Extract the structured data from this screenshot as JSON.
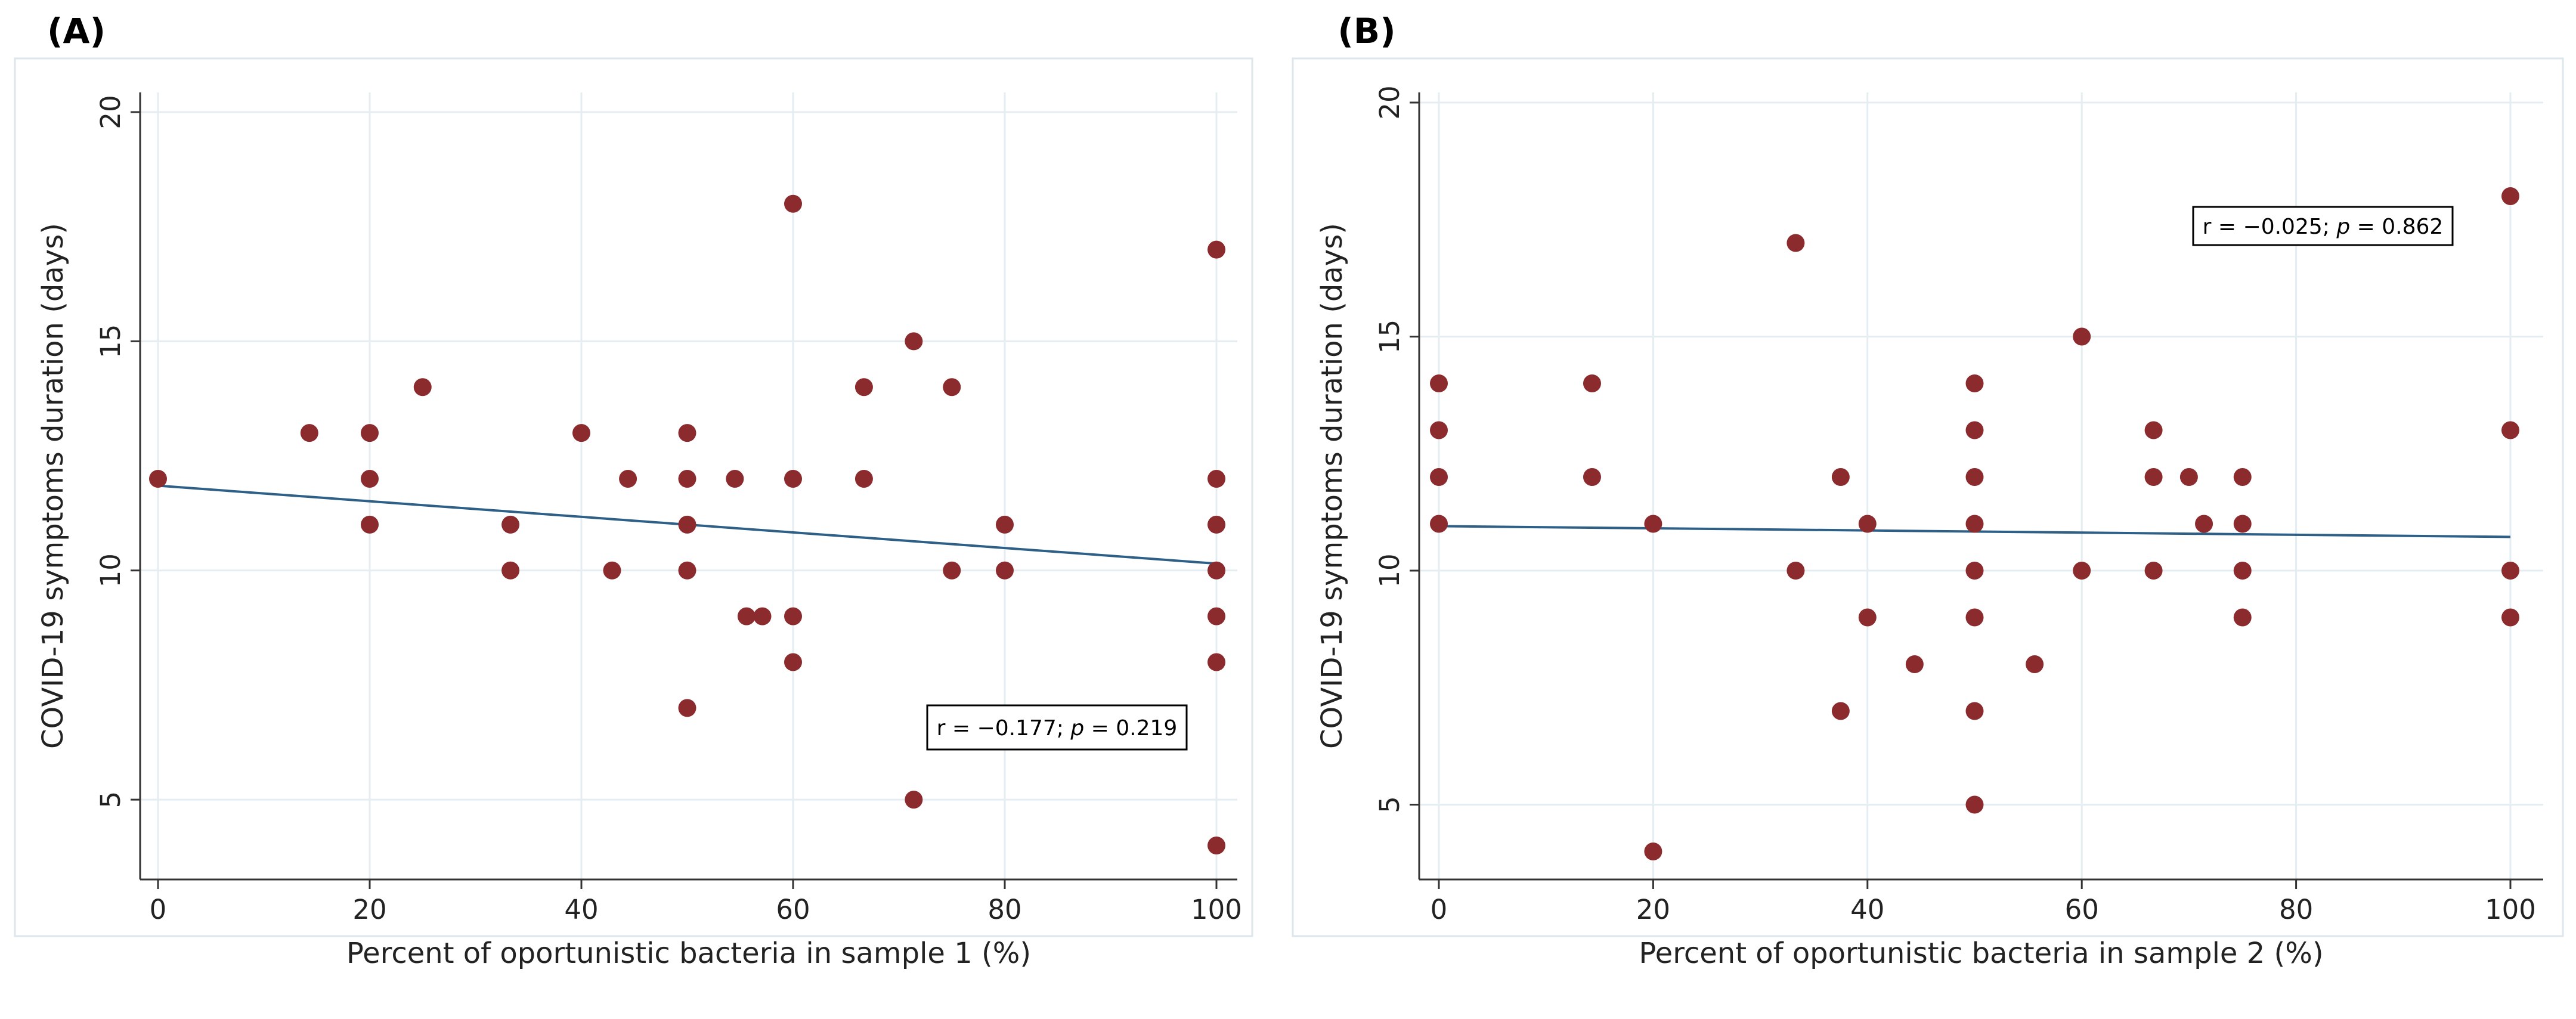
{
  "panel_labels": [
    "(A)",
    "(B)"
  ],
  "chart_data": [
    {
      "type": "scatter",
      "panel": "(A)",
      "xlabel": "Percent of oportunistic bacteria in sample 1 (%)",
      "ylabel": "COVID-19 symptoms duration (days)",
      "xlim": [
        0,
        100
      ],
      "ylim": [
        4,
        20
      ],
      "xticks": [
        0,
        20,
        40,
        60,
        80,
        100
      ],
      "yticks": [
        5,
        10,
        15,
        20
      ],
      "grid": true,
      "annotation": {
        "prefix": "r = −0.177; ",
        "p_symbol": "p",
        "suffix": " = 0.219"
      },
      "fit_line": {
        "x": [
          0,
          100
        ],
        "y": [
          11.85,
          10.15
        ]
      },
      "points": [
        [
          0,
          12
        ],
        [
          14.3,
          13
        ],
        [
          20,
          13
        ],
        [
          20,
          12
        ],
        [
          20,
          11
        ],
        [
          25,
          14
        ],
        [
          33.3,
          11
        ],
        [
          33.3,
          10
        ],
        [
          40,
          13
        ],
        [
          42.9,
          10
        ],
        [
          44.4,
          12
        ],
        [
          50,
          13
        ],
        [
          50,
          12
        ],
        [
          50,
          11
        ],
        [
          50,
          10
        ],
        [
          50,
          7
        ],
        [
          54.5,
          12
        ],
        [
          55.6,
          9
        ],
        [
          57.1,
          9
        ],
        [
          60,
          18
        ],
        [
          60,
          12
        ],
        [
          60,
          9
        ],
        [
          60,
          8
        ],
        [
          66.7,
          14
        ],
        [
          66.7,
          12
        ],
        [
          71.4,
          15
        ],
        [
          71.4,
          5
        ],
        [
          75,
          14
        ],
        [
          75,
          10
        ],
        [
          80,
          11
        ],
        [
          80,
          10
        ],
        [
          100,
          17
        ],
        [
          100,
          12
        ],
        [
          100,
          11
        ],
        [
          100,
          10
        ],
        [
          100,
          9
        ],
        [
          100,
          8
        ],
        [
          100,
          4
        ]
      ]
    },
    {
      "type": "scatter",
      "panel": "(B)",
      "xlabel": "Percent of oportunistic bacteria in sample 2 (%)",
      "ylabel": "COVID-19 symptoms duration (days)",
      "xlim": [
        0,
        100
      ],
      "ylim": [
        4,
        20
      ],
      "xticks": [
        0,
        20,
        40,
        60,
        80,
        100
      ],
      "yticks": [
        5,
        10,
        15,
        20
      ],
      "grid": true,
      "annotation": {
        "prefix": "r = −0.025; ",
        "p_symbol": "p",
        "suffix": " = 0.862"
      },
      "fit_line": {
        "x": [
          0,
          100
        ],
        "y": [
          10.95,
          10.72
        ]
      },
      "points": [
        [
          0,
          14
        ],
        [
          0,
          13
        ],
        [
          0,
          12
        ],
        [
          0,
          11
        ],
        [
          14.3,
          14
        ],
        [
          14.3,
          12
        ],
        [
          20,
          11
        ],
        [
          20,
          4
        ],
        [
          33.3,
          17
        ],
        [
          33.3,
          10
        ],
        [
          37.5,
          12
        ],
        [
          37.5,
          7
        ],
        [
          40,
          11
        ],
        [
          40,
          9
        ],
        [
          44.4,
          8
        ],
        [
          50,
          14
        ],
        [
          50,
          13
        ],
        [
          50,
          12
        ],
        [
          50,
          11
        ],
        [
          50,
          10
        ],
        [
          50,
          9
        ],
        [
          50,
          7
        ],
        [
          50,
          5
        ],
        [
          55.6,
          8
        ],
        [
          60,
          15
        ],
        [
          60,
          10
        ],
        [
          66.7,
          13
        ],
        [
          66.7,
          12
        ],
        [
          66.7,
          10
        ],
        [
          70,
          12
        ],
        [
          71.4,
          11
        ],
        [
          75,
          12
        ],
        [
          75,
          11
        ],
        [
          75,
          10
        ],
        [
          75,
          9
        ],
        [
          100,
          18
        ],
        [
          100,
          13
        ],
        [
          100,
          10
        ],
        [
          100,
          9
        ]
      ]
    }
  ],
  "colors": {
    "marker": "#8b2b2e",
    "fit_line": "#2e5f86",
    "grid": "#e4edf2",
    "axis": "#333333",
    "frame": "#dde6ea"
  }
}
